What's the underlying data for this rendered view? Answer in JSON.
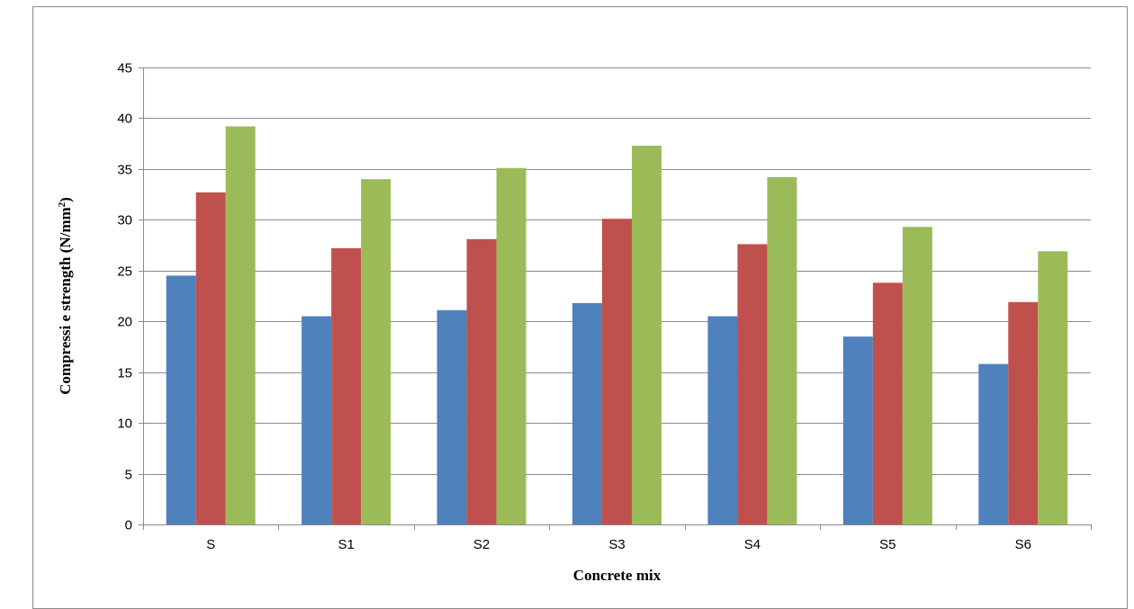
{
  "chart_data": {
    "type": "bar",
    "title": "",
    "xlabel": "Concrete mix",
    "ylabel": {
      "main": "Compressi e strength (N/mm",
      "superscript": "2",
      "suffix": ")"
    },
    "categories": [
      "S",
      "S1",
      "S2",
      "S3",
      "S4",
      "S5",
      "S6"
    ],
    "series": [
      {
        "color": "#4f81bd",
        "values": [
          24.5,
          20.5,
          21.1,
          21.8,
          20.5,
          18.5,
          15.8
        ]
      },
      {
        "color": "#c0504d",
        "values": [
          32.7,
          27.2,
          28.1,
          30.1,
          27.6,
          23.8,
          21.9
        ]
      },
      {
        "color": "#9bbb59",
        "values": [
          39.2,
          34.0,
          35.1,
          37.3,
          34.2,
          29.3,
          26.9
        ]
      }
    ],
    "ylim": [
      0,
      45
    ],
    "yticks": [
      0,
      5,
      10,
      15,
      20,
      25,
      30,
      35,
      40,
      45
    ],
    "grid": true,
    "legend": "none"
  }
}
